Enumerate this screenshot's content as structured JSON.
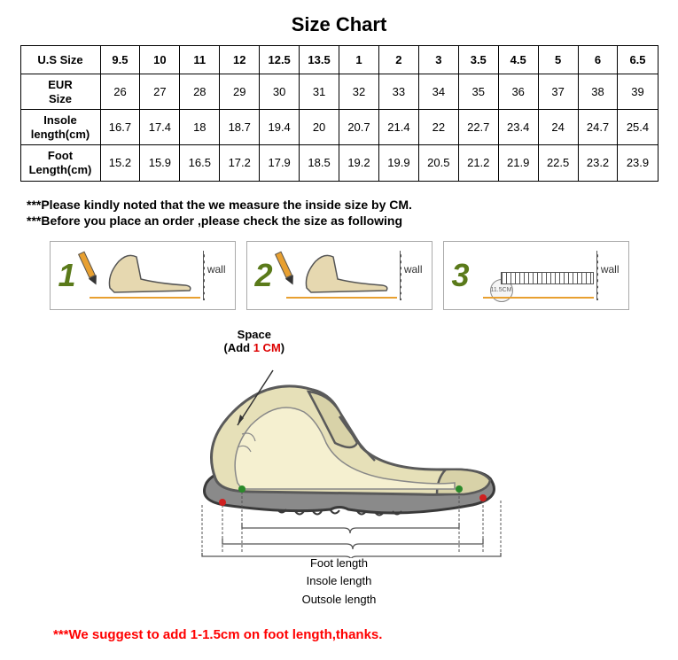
{
  "title": "Size Chart",
  "table": {
    "header_label": "U.S Size",
    "columns": [
      "9.5",
      "10",
      "11",
      "12",
      "12.5",
      "13.5",
      "1",
      "2",
      "3",
      "3.5",
      "4.5",
      "5",
      "6",
      "6.5"
    ],
    "rows": [
      {
        "label": "EUR Size",
        "cells": [
          "26",
          "27",
          "28",
          "29",
          "30",
          "31",
          "32",
          "33",
          "34",
          "35",
          "36",
          "37",
          "38",
          "39"
        ]
      },
      {
        "label": "Insole length(cm)",
        "cells": [
          "16.7",
          "17.4",
          "18",
          "18.7",
          "19.4",
          "20",
          "20.7",
          "21.4",
          "22",
          "22.7",
          "23.4",
          "24",
          "24.7",
          "25.4"
        ]
      },
      {
        "label": "Foot Length(cm)",
        "cells": [
          "15.2",
          "15.9",
          "16.5",
          "17.2",
          "17.9",
          "18.5",
          "19.2",
          "19.9",
          "20.5",
          "21.2",
          "21.9",
          "22.5",
          "23.2",
          "23.9"
        ]
      }
    ]
  },
  "notes": {
    "line1": "***Please kindly noted that the we measure the inside size by CM.",
    "line2": "***Before you place an order ,please check the size as following"
  },
  "steps": {
    "s1": {
      "num": "1",
      "wall": "wall"
    },
    "s2": {
      "num": "2",
      "wall": "wall"
    },
    "s3": {
      "num": "3",
      "wall": "wall",
      "circle": "11.5CM"
    }
  },
  "diagram": {
    "space_label": "Space",
    "space_add_pre": "(Add ",
    "space_add_val": "1 CM",
    "space_add_post": ")",
    "foot_length": "Foot length",
    "insole_length": "Insole length",
    "outsole_length": "Outsole length",
    "colors": {
      "shoe_fill": "#e6e0b8",
      "shoe_outline": "#5a5a5a",
      "foot_fill": "#f5f0d0",
      "sole_fill": "#8a8a8a",
      "marker_green": "#2a8a2a",
      "marker_red": "#d02020",
      "arrow": "#555555"
    }
  },
  "suggest": "***We suggest to add 1-1.5cm on foot length,thanks."
}
